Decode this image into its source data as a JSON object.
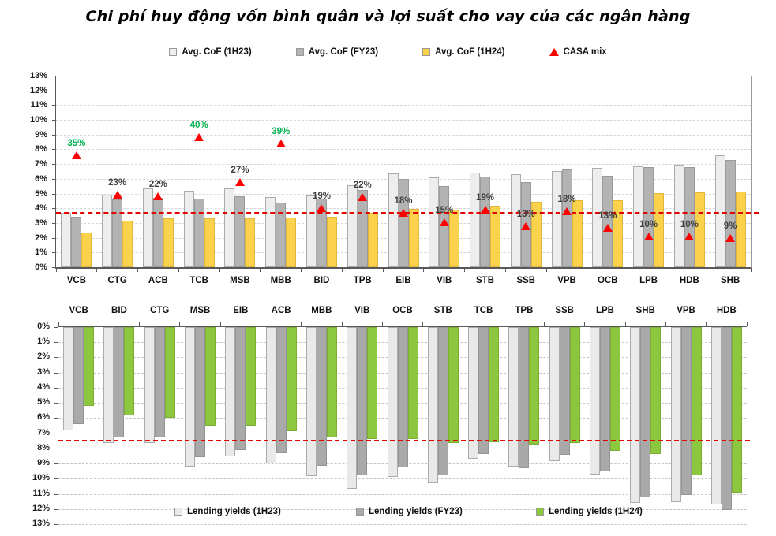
{
  "title": "Chi phí huy động vốn bình quân và lợi suất cho vay của các ngân hàng",
  "colors": {
    "casa_label_green": "#00B050",
    "casa_label_dark": "#404040",
    "marker_red": "#FE0000",
    "ref_line_red": "#E10000"
  },
  "chart_data": [
    {
      "type": "bar",
      "name": "avg-cof-and-casa-mix",
      "categories": [
        "VCB",
        "CTG",
        "ACB",
        "TCB",
        "MSB",
        "MBB",
        "BID",
        "TPB",
        "EIB",
        "VIB",
        "STB",
        "SSB",
        "VPB",
        "OCB",
        "LPB",
        "HDB",
        "SHB"
      ],
      "series": [
        {
          "name": "Avg. CoF (1H23)",
          "color": "#EDEDED",
          "border": "#ABABAB",
          "values": [
            3.7,
            4.9,
            5.35,
            5.2,
            5.35,
            4.75,
            4.85,
            5.55,
            6.35,
            6.1,
            6.4,
            6.3,
            6.55,
            6.75,
            6.85,
            6.95,
            7.6
          ]
        },
        {
          "name": "Avg. CoF (FY23)",
          "color": "#B3B3B3",
          "border": "#9A9A9A",
          "values": [
            3.45,
            4.6,
            4.7,
            4.65,
            4.8,
            4.4,
            4.65,
            5.25,
            6.0,
            5.5,
            6.15,
            5.8,
            6.65,
            6.2,
            6.8,
            6.8,
            7.3
          ]
        },
        {
          "name": "Avg. CoF (1H24)",
          "color": "#FBD24B",
          "border": "#E2B63C",
          "values": [
            2.35,
            3.15,
            3.3,
            3.3,
            3.3,
            3.35,
            3.4,
            3.7,
            3.95,
            3.9,
            4.15,
            4.45,
            4.55,
            4.55,
            5.05,
            5.1,
            5.15
          ]
        }
      ],
      "markers": {
        "name": "CASA mix",
        "labels": [
          "35%",
          "23%",
          "22%",
          "40%",
          "27%",
          "39%",
          "19%",
          "22%",
          "18%",
          "15%",
          "19%",
          "13%",
          "18%",
          "13%",
          "10%",
          "10%",
          "9%"
        ],
        "positions": [
          7.6,
          4.9,
          4.8,
          8.85,
          5.8,
          8.4,
          4.0,
          4.75,
          3.7,
          3.05,
          3.9,
          2.8,
          3.8,
          2.7,
          2.1,
          2.1,
          2.0
        ],
        "green_labels": [
          true,
          false,
          false,
          true,
          false,
          true,
          false,
          false,
          false,
          false,
          false,
          false,
          false,
          false,
          false,
          false,
          false
        ]
      },
      "ylim": [
        0,
        13
      ],
      "y_tick_labels": [
        "13%",
        "12%",
        "11%",
        "10%",
        "9%",
        "8%",
        "7%",
        "6%",
        "5%",
        "4%",
        "3%",
        "2%",
        "1%",
        "0%"
      ],
      "ref_line": {
        "value": 3.7
      },
      "inverted": false,
      "grid": true,
      "legend_position": "top"
    },
    {
      "type": "bar",
      "name": "lending-yields",
      "categories": [
        "VCB",
        "BID",
        "CTG",
        "MSB",
        "EIB",
        "ACB",
        "MBB",
        "VIB",
        "OCB",
        "STB",
        "TCB",
        "TPB",
        "SSB",
        "LPB",
        "SHB",
        "VPB",
        "HDB"
      ],
      "series": [
        {
          "name": "Lending yields (1H23)",
          "color": "#E9E9E9",
          "border": "#ABABAB",
          "values": [
            6.8,
            7.65,
            7.65,
            9.2,
            8.55,
            9.0,
            9.85,
            10.65,
            9.9,
            10.3,
            8.7,
            9.2,
            8.85,
            9.7,
            11.6,
            11.55,
            11.7
          ]
        },
        {
          "name": "Lending yields (FY23)",
          "color": "#A9A9A9",
          "border": "#949494",
          "values": [
            6.4,
            7.3,
            7.3,
            8.6,
            8.1,
            8.3,
            9.15,
            9.8,
            9.25,
            9.75,
            8.35,
            9.3,
            8.4,
            9.5,
            11.25,
            11.1,
            12.05
          ]
        },
        {
          "name": "Lending yields (1H24)",
          "color": "#8DC63F",
          "border": "#7BAD33",
          "values": [
            5.2,
            5.8,
            6.0,
            6.5,
            6.5,
            6.85,
            7.3,
            7.4,
            7.4,
            7.65,
            7.6,
            7.75,
            7.65,
            8.15,
            8.35,
            9.8,
            10.9
          ]
        }
      ],
      "ylim": [
        0,
        13
      ],
      "y_tick_labels": [
        "0%",
        "1%",
        "2%",
        "3%",
        "4%",
        "5%",
        "6%",
        "7%",
        "8%",
        "9%",
        "10%",
        "11%",
        "12%",
        "13%"
      ],
      "ref_line": {
        "value": 7.5
      },
      "inverted": true,
      "grid": true,
      "legend_position": "bottom"
    }
  ]
}
